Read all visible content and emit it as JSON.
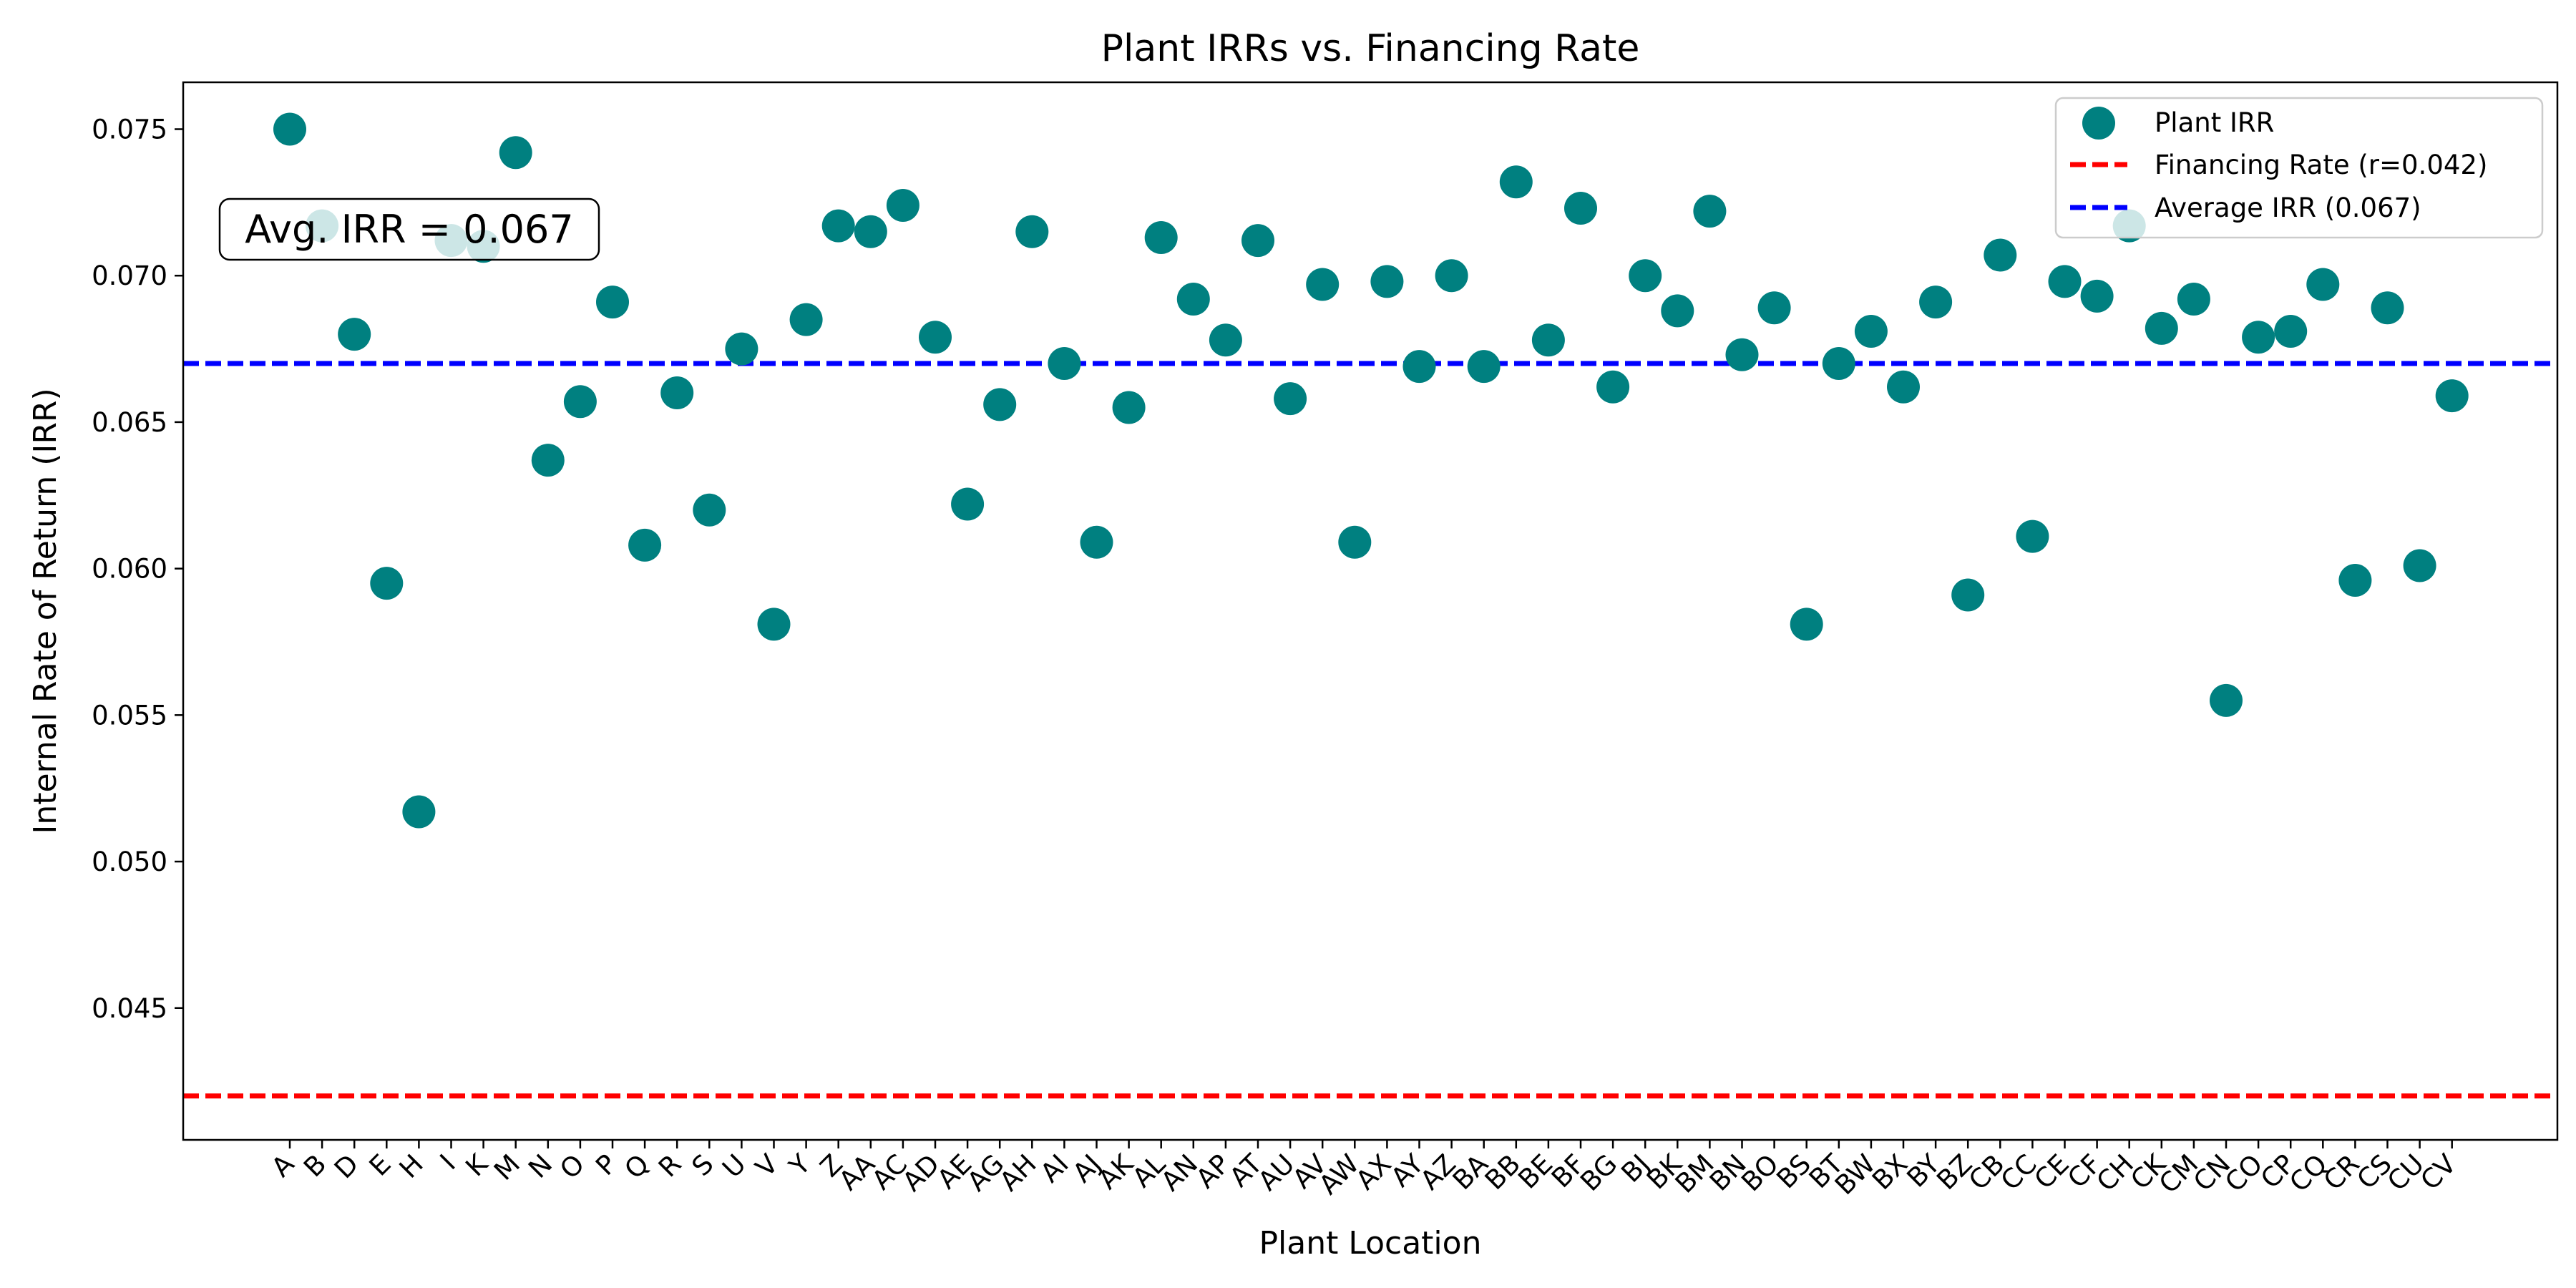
{
  "chart_data": {
    "type": "scatter",
    "title": "Plant IRRs vs. Financing Rate",
    "xlabel": "Plant Location",
    "ylabel": "Internal Rate of Return (IRR)",
    "ylim": [
      0.0405,
      0.0766
    ],
    "yticks": [
      "0.045",
      "0.050",
      "0.055",
      "0.060",
      "0.065",
      "0.070",
      "0.075"
    ],
    "categories": [
      "A",
      "B",
      "D",
      "E",
      "H",
      "I",
      "K",
      "M",
      "N",
      "O",
      "P",
      "Q",
      "R",
      "S",
      "U",
      "V",
      "Y",
      "Z",
      "AA",
      "AC",
      "AD",
      "AE",
      "AG",
      "AH",
      "AI",
      "AJ",
      "AK",
      "AL",
      "AN",
      "AP",
      "AT",
      "AU",
      "AV",
      "AW",
      "AX",
      "AY",
      "AZ",
      "BA",
      "BB",
      "BE",
      "BF",
      "BG",
      "BJ",
      "BK",
      "BM",
      "BN",
      "BO",
      "BS",
      "BT",
      "BW",
      "BX",
      "BY",
      "BZ",
      "CB",
      "CC",
      "CE",
      "CF",
      "CH",
      "CK",
      "CM",
      "CN",
      "CO",
      "CP",
      "CQ",
      "CR",
      "CS",
      "CU",
      "CV"
    ],
    "series": [
      {
        "name": "Plant IRR",
        "color": "#008080",
        "values": [
          0.075,
          0.0717,
          0.068,
          0.0595,
          0.0517,
          0.0712,
          0.071,
          0.0742,
          0.0637,
          0.0657,
          0.0691,
          0.0608,
          0.066,
          0.062,
          0.0675,
          0.0581,
          0.0685,
          0.0717,
          0.0715,
          0.0724,
          0.0679,
          0.0622,
          0.0656,
          0.0715,
          0.067,
          0.0609,
          0.0655,
          0.0713,
          0.0692,
          0.0678,
          0.0712,
          0.0658,
          0.0697,
          0.0609,
          0.0698,
          0.0669,
          0.07,
          0.0669,
          0.0732,
          0.0678,
          0.0723,
          0.0662,
          0.07,
          0.0688,
          0.0722,
          0.0673,
          0.0689,
          0.0581,
          0.067,
          0.0681,
          0.0662,
          0.0691,
          0.0591,
          0.0707,
          0.0611,
          0.0698,
          0.0693,
          0.0717,
          0.0682,
          0.0692,
          0.0555,
          0.0679,
          0.0681,
          0.0697,
          0.0596,
          0.0689,
          0.0601,
          0.0659
        ]
      }
    ],
    "hlines": [
      {
        "name": "Financing Rate (r=0.042)",
        "value": 0.042,
        "color": "#ff0000",
        "style": "dashed"
      },
      {
        "name": "Average IRR (0.067)",
        "value": 0.067,
        "color": "#0000ff",
        "style": "dashed"
      }
    ],
    "annotation": {
      "text": "Avg. IRR = 0.067",
      "position": "upper-left"
    },
    "legend": {
      "placement": "top-right"
    },
    "grid": false
  }
}
